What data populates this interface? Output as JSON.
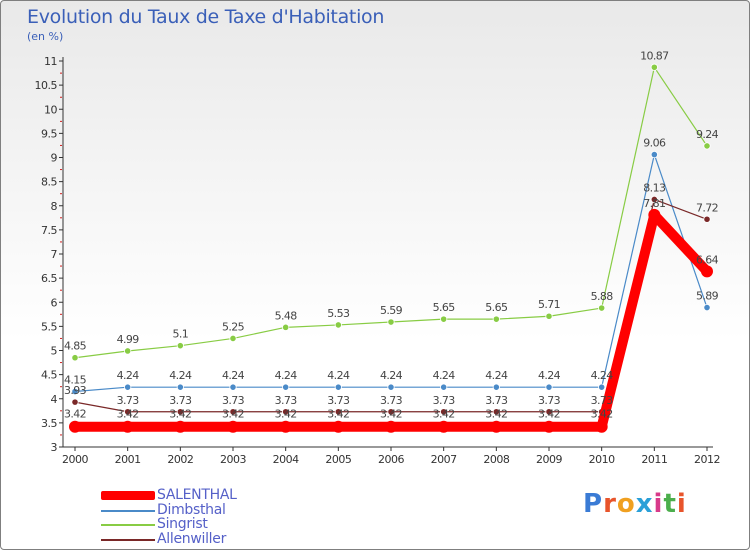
{
  "header": {
    "title": "Evolution du Taux de Taxe d'Habitation",
    "subtitle": "(en %)"
  },
  "brand": {
    "letters": [
      "P",
      "r",
      "o",
      "x",
      "i",
      "t",
      "i"
    ],
    "colors": [
      "#3a7bd5",
      "#e8542b",
      "#f0a020",
      "#2aa0d8",
      "#d83a8a",
      "#4cae4c",
      "#e8542b"
    ]
  },
  "chart_data": {
    "type": "line",
    "title": "Evolution du Taux de Taxe d'Habitation",
    "ylabel": "(en %)",
    "xlabel": "",
    "x": [
      "2000",
      "2001",
      "2002",
      "2003",
      "2004",
      "2005",
      "2006",
      "2007",
      "2008",
      "2009",
      "2010",
      "2011",
      "2012"
    ],
    "ylim": [
      3,
      11
    ],
    "yticks": [
      "3",
      "3.5",
      "4",
      "4.5",
      "5",
      "5.5",
      "6",
      "6.5",
      "7",
      "7.5",
      "8",
      "8.5",
      "9",
      "9.5",
      "10",
      "10.5",
      "11"
    ],
    "grid": false,
    "legend_position": "bottom-left",
    "series": [
      {
        "name": "SALENTHAL",
        "color": "#ff0000",
        "values": [
          3.42,
          3.42,
          3.42,
          3.42,
          3.42,
          3.42,
          3.42,
          3.42,
          3.42,
          3.42,
          3.42,
          7.81,
          6.64
        ],
        "labels": [
          "3.42",
          "3.42",
          "3.42",
          "3.42",
          "3.42",
          "3.42",
          "3.42",
          "3.42",
          "3.42",
          "3.42",
          "3.42",
          "7.81",
          "6.64"
        ]
      },
      {
        "name": "Dimbsthal",
        "color": "#4a8ac8",
        "values": [
          4.15,
          4.24,
          4.24,
          4.24,
          4.24,
          4.24,
          4.24,
          4.24,
          4.24,
          4.24,
          4.24,
          9.06,
          5.89
        ],
        "labels": [
          "4.15",
          "4.24",
          "4.24",
          "4.24",
          "4.24",
          "4.24",
          "4.24",
          "4.24",
          "4.24",
          "4.24",
          "4.24",
          "9.06",
          "5.89"
        ]
      },
      {
        "name": "Singrist",
        "color": "#88cc44",
        "values": [
          4.85,
          4.99,
          5.1,
          5.25,
          5.48,
          5.53,
          5.59,
          5.65,
          5.65,
          5.71,
          5.88,
          10.87,
          9.24
        ],
        "labels": [
          "4.85",
          "4.99",
          "5.1",
          "5.25",
          "5.48",
          "5.53",
          "5.59",
          "5.65",
          "5.65",
          "5.71",
          "5.88",
          "10.87",
          "9.24"
        ]
      },
      {
        "name": "Allenwiller",
        "color": "#7a2828",
        "values": [
          3.93,
          3.73,
          3.73,
          3.73,
          3.73,
          3.73,
          3.73,
          3.73,
          3.73,
          3.73,
          3.73,
          8.13,
          7.72
        ],
        "labels": [
          "3.93",
          "3.73",
          "3.73",
          "3.73",
          "3.73",
          "3.73",
          "3.73",
          "3.73",
          "3.73",
          "3.73",
          "3.73",
          "8.13",
          "7.72"
        ]
      }
    ]
  }
}
